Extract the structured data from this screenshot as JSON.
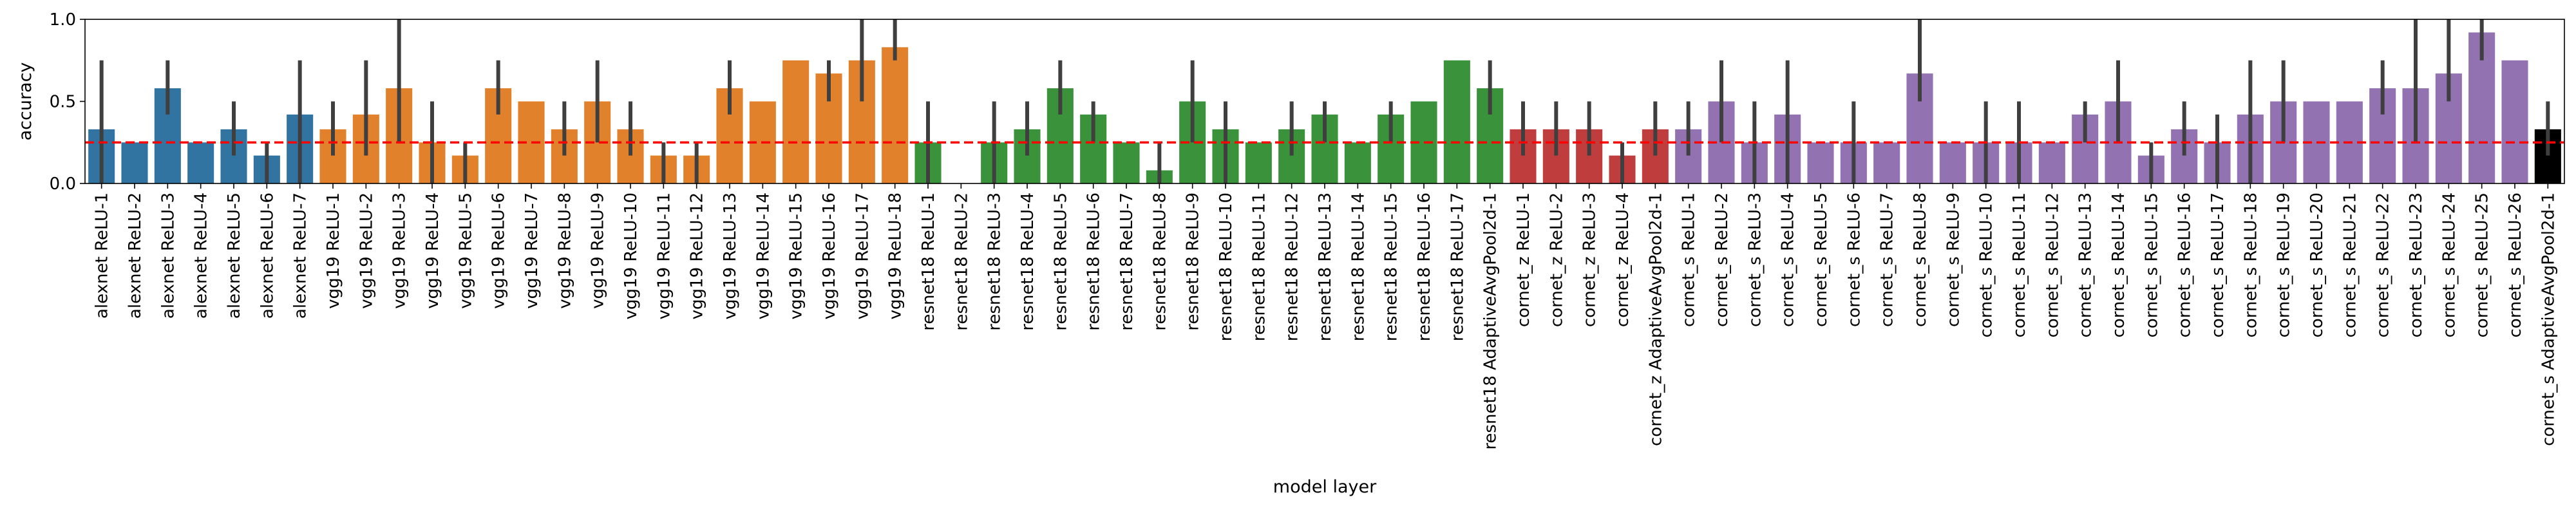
{
  "chart_data": {
    "type": "bar",
    "xlabel": "model layer",
    "ylabel": "accuracy",
    "ylim": [
      0.0,
      1.0
    ],
    "yticks": [
      0.0,
      0.5,
      1.0
    ],
    "ytick_labels": [
      "0.0",
      "0.5",
      "1.0"
    ],
    "chance_line": 0.25,
    "chance_line_color": "#ff0000",
    "error_bar_color": "#3f3f3f",
    "grid": false,
    "colors": {
      "alexnet": "#3274a1",
      "vgg19": "#e1812c",
      "resnet18": "#3a923a",
      "cornet_z": "#c03d3e",
      "cornet_s": "#9372b2"
    },
    "categories": [
      "alexnet ReLU-1",
      "alexnet ReLU-2",
      "alexnet ReLU-3",
      "alexnet ReLU-4",
      "alexnet ReLU-5",
      "alexnet ReLU-6",
      "alexnet ReLU-7",
      "vgg19 ReLU-1",
      "vgg19 ReLU-2",
      "vgg19 ReLU-3",
      "vgg19 ReLU-4",
      "vgg19 ReLU-5",
      "vgg19 ReLU-6",
      "vgg19 ReLU-7",
      "vgg19 ReLU-8",
      "vgg19 ReLU-9",
      "vgg19 ReLU-10",
      "vgg19 ReLU-11",
      "vgg19 ReLU-12",
      "vgg19 ReLU-13",
      "vgg19 ReLU-14",
      "vgg19 ReLU-15",
      "vgg19 ReLU-16",
      "vgg19 ReLU-17",
      "vgg19 ReLU-18",
      "resnet18 ReLU-1",
      "resnet18 ReLU-2",
      "resnet18 ReLU-3",
      "resnet18 ReLU-4",
      "resnet18 ReLU-5",
      "resnet18 ReLU-6",
      "resnet18 ReLU-7",
      "resnet18 ReLU-8",
      "resnet18 ReLU-9",
      "resnet18 ReLU-10",
      "resnet18 ReLU-11",
      "resnet18 ReLU-12",
      "resnet18 ReLU-13",
      "resnet18 ReLU-14",
      "resnet18 ReLU-15",
      "resnet18 ReLU-16",
      "resnet18 ReLU-17",
      "resnet18 AdaptiveAvgPool2d-1",
      "cornet_z ReLU-1",
      "cornet_z ReLU-2",
      "cornet_z ReLU-3",
      "cornet_z ReLU-4",
      "cornet_z AdaptiveAvgPool2d-1",
      "cornet_s ReLU-1",
      "cornet_s ReLU-2",
      "cornet_s ReLU-3",
      "cornet_s ReLU-4",
      "cornet_s ReLU-5",
      "cornet_s ReLU-6",
      "cornet_s ReLU-7",
      "cornet_s ReLU-8",
      "cornet_s ReLU-9",
      "cornet_s ReLU-10",
      "cornet_s ReLU-11",
      "cornet_s ReLU-12",
      "cornet_s ReLU-13",
      "cornet_s ReLU-14",
      "cornet_s ReLU-15",
      "cornet_s ReLU-16",
      "cornet_s ReLU-17",
      "cornet_s ReLU-18",
      "cornet_s ReLU-19",
      "cornet_s ReLU-20",
      "cornet_s ReLU-21",
      "cornet_s ReLU-22",
      "cornet_s ReLU-23",
      "cornet_s ReLU-24",
      "cornet_s ReLU-25",
      "cornet_s ReLU-26",
      "cornet_s AdaptiveAvgPool2d-1"
    ],
    "groups": [
      "alexnet",
      "alexnet",
      "alexnet",
      "alexnet",
      "alexnet",
      "alexnet",
      "alexnet",
      "vgg19",
      "vgg19",
      "vgg19",
      "vgg19",
      "vgg19",
      "vgg19",
      "vgg19",
      "vgg19",
      "vgg19",
      "vgg19",
      "vgg19",
      "vgg19",
      "vgg19",
      "vgg19",
      "vgg19",
      "vgg19",
      "vgg19",
      "vgg19",
      "resnet18",
      "resnet18",
      "resnet18",
      "resnet18",
      "resnet18",
      "resnet18",
      "resnet18",
      "resnet18",
      "resnet18",
      "resnet18",
      "resnet18",
      "resnet18",
      "resnet18",
      "resnet18",
      "resnet18",
      "resnet18",
      "resnet18",
      "resnet18",
      "cornet_z",
      "cornet_z",
      "cornet_z",
      "cornet_z",
      "cornet_z",
      "cornet_s",
      "cornet_s",
      "cornet_s",
      "cornet_s",
      "cornet_s",
      "cornet_s",
      "cornet_s",
      "cornet_s",
      "cornet_s",
      "cornet_s",
      "cornet_s",
      "cornet_s",
      "cornet_s",
      "cornet_s",
      "cornet_s",
      "cornet_s",
      "cornet_s",
      "cornet_s",
      "cornet_s",
      "cornet_s",
      "cornet_s",
      "cornet_s",
      "cornet_s",
      "cornet_s",
      "cornet_s",
      "cornet_s"
    ],
    "values": [
      0.33,
      0.25,
      0.58,
      0.25,
      0.33,
      0.17,
      0.42,
      0.33,
      0.42,
      0.58,
      0.25,
      0.17,
      0.58,
      0.5,
      0.33,
      0.5,
      0.33,
      0.17,
      0.17,
      0.58,
      0.5,
      0.75,
      0.67,
      0.75,
      0.83,
      0.25,
      0.0,
      0.25,
      0.33,
      0.58,
      0.42,
      0.25,
      0.08,
      0.5,
      0.33,
      0.25,
      0.33,
      0.42,
      0.25,
      0.42,
      0.5,
      0.75,
      0.58,
      0.33,
      0.33,
      0.33,
      0.17,
      0.33,
      0.33,
      0.5,
      0.25,
      0.42,
      0.25,
      0.25,
      0.25,
      0.67,
      0.25,
      0.25,
      0.25,
      0.25,
      0.42,
      0.5,
      0.17,
      0.33,
      0.25,
      0.42,
      0.5,
      0.5,
      0.5,
      0.58,
      0.58,
      0.67,
      0.92,
      0.75,
      0.33
    ],
    "ci_low": [
      0.0,
      0.25,
      0.42,
      0.25,
      0.17,
      0.0,
      0.0,
      0.17,
      0.17,
      0.25,
      0.0,
      0.0,
      0.42,
      0.5,
      0.17,
      0.25,
      0.17,
      0.0,
      0.0,
      0.42,
      0.5,
      0.75,
      0.5,
      0.5,
      0.75,
      0.0,
      0.0,
      0.0,
      0.17,
      0.42,
      0.25,
      0.25,
      0.0,
      0.25,
      0.0,
      0.25,
      0.17,
      0.25,
      0.25,
      0.25,
      0.5,
      0.75,
      0.42,
      0.17,
      0.17,
      0.17,
      0.0,
      0.17,
      0.17,
      0.25,
      0.0,
      0.0,
      0.25,
      0.0,
      0.25,
      0.5,
      0.25,
      0.0,
      0.0,
      0.25,
      0.25,
      0.25,
      0.0,
      0.17,
      0.0,
      0.0,
      0.25,
      0.5,
      0.5,
      0.42,
      0.25,
      0.5,
      0.75,
      0.75,
      0.17
    ],
    "ci_high": [
      0.75,
      0.25,
      0.75,
      0.25,
      0.5,
      0.25,
      0.75,
      0.5,
      0.75,
      1.0,
      0.5,
      0.25,
      0.75,
      0.5,
      0.5,
      0.75,
      0.5,
      0.25,
      0.25,
      0.75,
      0.5,
      0.75,
      0.75,
      1.0,
      1.0,
      0.5,
      0.0,
      0.5,
      0.5,
      0.75,
      0.5,
      0.25,
      0.25,
      0.75,
      0.5,
      0.25,
      0.5,
      0.5,
      0.25,
      0.5,
      0.5,
      0.75,
      0.75,
      0.5,
      0.5,
      0.5,
      0.25,
      0.5,
      0.5,
      0.75,
      0.5,
      0.75,
      0.25,
      0.5,
      0.25,
      1.0,
      0.25,
      0.5,
      0.5,
      0.25,
      0.5,
      0.75,
      0.25,
      0.5,
      0.42,
      0.75,
      0.75,
      0.5,
      0.5,
      0.75,
      1.0,
      1.0,
      1.0,
      0.75,
      0.5
    ]
  }
}
